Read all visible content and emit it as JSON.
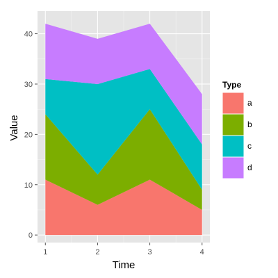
{
  "chart_data": {
    "type": "area",
    "stacked": true,
    "x": [
      1,
      2,
      3,
      4
    ],
    "series": [
      {
        "name": "a",
        "values": [
          11,
          6,
          11,
          5
        ],
        "color": "#F8766D"
      },
      {
        "name": "b",
        "values": [
          13,
          6,
          14,
          4
        ],
        "color": "#7CAE00"
      },
      {
        "name": "c",
        "values": [
          7,
          18,
          8,
          9
        ],
        "color": "#00BFC4"
      },
      {
        "name": "d",
        "values": [
          11,
          9,
          9,
          10
        ],
        "color": "#C77CFF"
      }
    ],
    "xlabel": "Time",
    "ylabel": "Value",
    "xlim": [
      0.85,
      4.15
    ],
    "ylim": [
      -1.5,
      44.5
    ],
    "xticks": [
      1,
      2,
      3,
      4
    ],
    "yticks": [
      0,
      10,
      20,
      30,
      40
    ],
    "grid": true,
    "legend": {
      "title": "Type",
      "placement": "right"
    },
    "panel_background": "#E5E5E5",
    "grid_color": "#FFFFFF"
  }
}
